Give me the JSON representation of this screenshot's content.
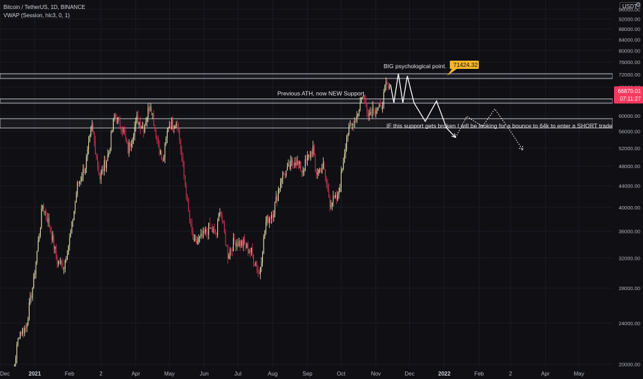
{
  "header": {
    "symbol_line": "Bitcoin / TetherUS, 1D, BINANCE",
    "indicator_line": "VWAP (Session, hlc3, 0, 1)"
  },
  "toolbar": {
    "currency_label": "USDT",
    "settings_label": "⚙"
  },
  "chart_data": {
    "type": "candlestick",
    "title": "Bitcoin / TetherUS, 1D, BINANCE",
    "y_scale": "log",
    "ylim": [
      19800,
      100000
    ],
    "y_ticks": [
      20000,
      24000,
      28000,
      32000,
      36000,
      40000,
      44000,
      48000,
      52000,
      56000,
      60000,
      64000,
      68000,
      72000,
      76000,
      80000,
      84000,
      88000,
      92000,
      96000
    ],
    "y_tick_labels": [
      "20000.00",
      "24000.00",
      "28000.00",
      "32000.00",
      "36000.00",
      "40000.00",
      "44000.00",
      "48000.00",
      "52000.00",
      "56000.00",
      "60000.00",
      "64000.00",
      "68000.00",
      "72000.00",
      "76000.00",
      "80000.00",
      "84000.00",
      "88000.00",
      "92000.00",
      "96000.00"
    ],
    "x_range": [
      "2020-12-01",
      "2022-05-31"
    ],
    "x_ticks": [
      {
        "date": "2020-12-01",
        "label": "Dec",
        "bold": false
      },
      {
        "date": "2021-01-01",
        "label": "2021",
        "bold": true
      },
      {
        "date": "2021-02-01",
        "label": "Feb",
        "bold": false
      },
      {
        "date": "2021-03-01",
        "label": "2",
        "bold": false
      },
      {
        "date": "2021-04-01",
        "label": "Apr",
        "bold": false
      },
      {
        "date": "2021-05-01",
        "label": "May",
        "bold": false
      },
      {
        "date": "2021-06-01",
        "label": "Jun",
        "bold": false
      },
      {
        "date": "2021-07-01",
        "label": "Jul",
        "bold": false
      },
      {
        "date": "2021-08-01",
        "label": "Aug",
        "bold": false
      },
      {
        "date": "2021-09-01",
        "label": "Sep",
        "bold": false
      },
      {
        "date": "2021-10-01",
        "label": "Oct",
        "bold": false
      },
      {
        "date": "2021-11-01",
        "label": "Nov",
        "bold": false
      },
      {
        "date": "2021-12-01",
        "label": "Dec",
        "bold": false
      },
      {
        "date": "2022-01-01",
        "label": "2022",
        "bold": true
      },
      {
        "date": "2022-02-01",
        "label": "Feb",
        "bold": false
      },
      {
        "date": "2022-03-01",
        "label": "2",
        "bold": false
      },
      {
        "date": "2022-04-01",
        "label": "Apr",
        "bold": false
      },
      {
        "date": "2022-05-01",
        "label": "May",
        "bold": false
      }
    ],
    "price_path": [
      [
        "2020-12-05",
        19300
      ],
      [
        "2020-12-12",
        18800
      ],
      [
        "2020-12-18",
        23000
      ],
      [
        "2020-12-24",
        23500
      ],
      [
        "2020-12-31",
        29000
      ],
      [
        "2021-01-08",
        40500
      ],
      [
        "2021-01-14",
        37000
      ],
      [
        "2021-01-21",
        31500
      ],
      [
        "2021-01-27",
        31000
      ],
      [
        "2021-02-02",
        35500
      ],
      [
        "2021-02-08",
        44000
      ],
      [
        "2021-02-15",
        48000
      ],
      [
        "2021-02-21",
        57000
      ],
      [
        "2021-02-28",
        45500
      ],
      [
        "2021-03-08",
        51000
      ],
      [
        "2021-03-13",
        60000
      ],
      [
        "2021-03-20",
        57000
      ],
      [
        "2021-03-25",
        51500
      ],
      [
        "2021-04-02",
        59000
      ],
      [
        "2021-04-08",
        57000
      ],
      [
        "2021-04-14",
        63500
      ],
      [
        "2021-04-19",
        55500
      ],
      [
        "2021-04-25",
        48500
      ],
      [
        "2021-04-30",
        57500
      ],
      [
        "2021-05-08",
        58500
      ],
      [
        "2021-05-12",
        50000
      ],
      [
        "2021-05-19",
        37500
      ],
      [
        "2021-05-23",
        34000
      ],
      [
        "2021-05-30",
        35000
      ],
      [
        "2021-06-05",
        36500
      ],
      [
        "2021-06-12",
        35500
      ],
      [
        "2021-06-15",
        40000
      ],
      [
        "2021-06-22",
        32500
      ],
      [
        "2021-06-28",
        34500
      ],
      [
        "2021-07-06",
        34000
      ],
      [
        "2021-07-13",
        32800
      ],
      [
        "2021-07-20",
        29800
      ],
      [
        "2021-07-26",
        37500
      ],
      [
        "2021-08-02",
        39500
      ],
      [
        "2021-08-09",
        46000
      ],
      [
        "2021-08-14",
        47000
      ],
      [
        "2021-08-21",
        49500
      ],
      [
        "2021-08-27",
        47000
      ],
      [
        "2021-09-06",
        52000
      ],
      [
        "2021-09-08",
        46500
      ],
      [
        "2021-09-15",
        48000
      ],
      [
        "2021-09-21",
        41000
      ],
      [
        "2021-09-28",
        41500
      ],
      [
        "2021-10-06",
        55000
      ],
      [
        "2021-10-15",
        60000
      ],
      [
        "2021-10-20",
        66000
      ],
      [
        "2021-10-26",
        60500
      ],
      [
        "2021-10-29",
        62000
      ],
      [
        "2021-11-05",
        61500
      ],
      [
        "2021-11-10",
        68500
      ],
      [
        "2021-11-13",
        66870
      ]
    ],
    "current_price": 66870.01,
    "current_price_label": "66870.01",
    "countdown_label": "07:11:27",
    "zones": [
      {
        "low": 70700,
        "high": 72200
      },
      {
        "low": 63400,
        "high": 64600
      },
      {
        "low": 56800,
        "high": 59200
      }
    ],
    "projection_solid": [
      [
        "2021-11-14",
        68800
      ],
      [
        "2021-11-17",
        63500
      ],
      [
        "2021-11-21",
        72200
      ],
      [
        "2021-11-25",
        63500
      ],
      [
        "2021-11-29",
        71500
      ],
      [
        "2021-12-05",
        63500
      ],
      [
        "2021-12-15",
        58500
      ],
      [
        "2021-12-25",
        64000
      ],
      [
        "2022-01-03",
        56800
      ],
      [
        "2022-01-11",
        54500
      ]
    ],
    "projection_dotted": [
      [
        "2022-01-11",
        54500
      ],
      [
        "2022-01-21",
        59800
      ],
      [
        "2022-02-04",
        57200
      ],
      [
        "2022-02-15",
        61800
      ],
      [
        "2022-03-01",
        56000
      ],
      [
        "2022-03-12",
        51500
      ]
    ],
    "annotations": {
      "big_point": "BIG psychological point.",
      "price_tag": "71424.32",
      "support_note": "Previous ATH, now NEW Support.",
      "short_note": "IF this support gets broken I will be looking for a bounce to 64k to enter a SHORT trade"
    },
    "colors": {
      "background": "#0f0f14",
      "candle_up": "#f0e9b2",
      "candle_down": "#e03356",
      "price_badge": "#f23a5f",
      "tag": "#f7b427",
      "zone_border": "#b8bcc6",
      "projection": "#ffffff"
    }
  }
}
